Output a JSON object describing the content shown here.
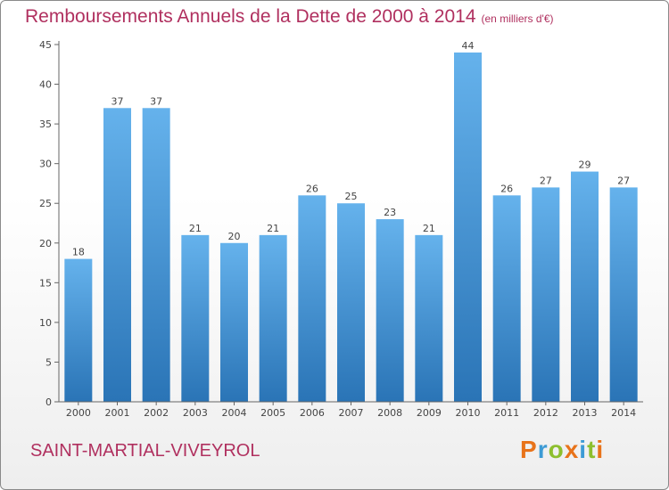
{
  "title": "Remboursements Annuels de la Dette de 2000 à 2014",
  "unit": "(en milliers d'€)",
  "commune": "SAINT-MARTIAL-VIVEYROL",
  "logo": {
    "letters": [
      "P",
      "r",
      "o",
      "x",
      "i",
      "t",
      "i"
    ],
    "colors": [
      "#e8731a",
      "#3d9bd5",
      "#8dbf2e",
      "#e8731a",
      "#3d9bd5",
      "#8dbf2e",
      "#e8731a"
    ]
  },
  "colors": {
    "bar_light": "#65b2ec",
    "bar_dark": "#2a74b6",
    "title": "#b0305f"
  },
  "chart_data": {
    "type": "bar",
    "categories": [
      "2000",
      "2001",
      "2002",
      "2003",
      "2004",
      "2005",
      "2006",
      "2007",
      "2008",
      "2009",
      "2010",
      "2011",
      "2012",
      "2013",
      "2014"
    ],
    "values": [
      18,
      37,
      37,
      21,
      20,
      21,
      26,
      25,
      23,
      21,
      44,
      26,
      27,
      29,
      27
    ],
    "yticks": [
      0,
      5,
      10,
      15,
      20,
      25,
      30,
      35,
      40,
      45
    ],
    "ylim": [
      0,
      45
    ],
    "grid": false
  }
}
